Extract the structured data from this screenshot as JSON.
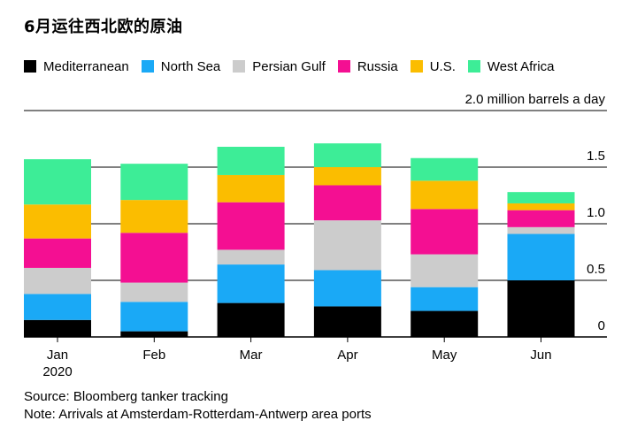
{
  "title": "6月运往西北欧的原油",
  "source": "Source: Bloomberg tanker tracking",
  "note": "Note: Arrivals at Amsterdam-Rotterdam-Antwerp area ports",
  "chart_data": {
    "type": "bar",
    "stacked": true,
    "categories": [
      "Jan",
      "Feb",
      "Mar",
      "Apr",
      "May",
      "Jun"
    ],
    "category_sublabels": [
      "2020",
      "",
      "",
      "",
      "",
      ""
    ],
    "ylabel": "2.0 million barrels a day",
    "yticks": [
      {
        "value": 0,
        "label": "0"
      },
      {
        "value": 0.5,
        "label": "0.5"
      },
      {
        "value": 1.0,
        "label": "1.0"
      },
      {
        "value": 1.5,
        "label": "1.5"
      },
      {
        "value": 2.0,
        "label": "2.0 million barrels a day"
      }
    ],
    "ylim": [
      0,
      2.0
    ],
    "grid": true,
    "legend_position": "top",
    "series": [
      {
        "name": "Mediterranean",
        "color": "#000000",
        "values": [
          0.15,
          0.05,
          0.3,
          0.27,
          0.23,
          0.5
        ]
      },
      {
        "name": "North Sea",
        "color": "#1aa9f6",
        "values": [
          0.23,
          0.26,
          0.34,
          0.32,
          0.21,
          0.41
        ]
      },
      {
        "name": "Persian Gulf",
        "color": "#cccccc",
        "values": [
          0.23,
          0.17,
          0.13,
          0.44,
          0.29,
          0.06
        ]
      },
      {
        "name": "Russia",
        "color": "#f40f92",
        "values": [
          0.26,
          0.44,
          0.42,
          0.31,
          0.4,
          0.15
        ]
      },
      {
        "name": "U.S.",
        "color": "#fbbd00",
        "values": [
          0.3,
          0.29,
          0.24,
          0.16,
          0.25,
          0.06
        ]
      },
      {
        "name": "West Africa",
        "color": "#3ded97",
        "values": [
          0.4,
          0.32,
          0.25,
          0.21,
          0.2,
          0.1
        ]
      }
    ]
  }
}
